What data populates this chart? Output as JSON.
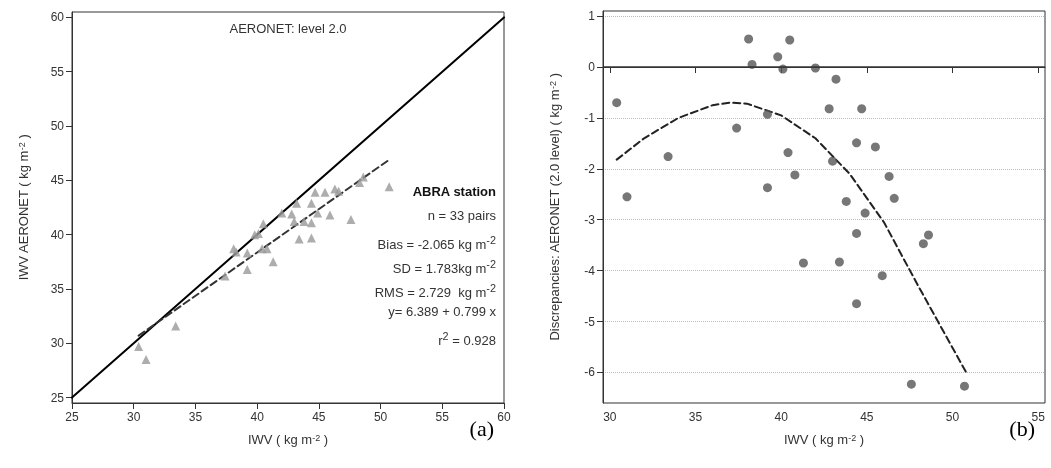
{
  "chart_data": [
    {
      "type": "scatter",
      "xlabel": "IWV ( kg m$^{-2}$ )",
      "ylabel": "IWV AERONET ( kg m$^{-2}$ )",
      "xlim": [
        25,
        60
      ],
      "ylim": [
        24.5,
        60.5
      ],
      "xticks": [
        25,
        30,
        35,
        40,
        45,
        50,
        55,
        60
      ],
      "yticks": [
        25,
        30,
        35,
        40,
        45,
        50,
        55,
        60
      ],
      "grid": false,
      "marker": "triangle",
      "annotations": [
        "AERONET: level 2.0",
        "ABRA station",
        "n = 33 pairs",
        "Bias = -2.065 kg m$^{-2}$",
        "SD = 1.783kg m$^{-2}$",
        "RMS = 2.729  kg m$^{-2}$",
        "y= 6.389 + 0.799 x",
        "r$^{2}$ = 0.928",
        "(a)"
      ],
      "series": [
        {
          "color": "#999999",
          "x": [
            30.4,
            31.0,
            33.4,
            37.4,
            38.1,
            38.3,
            39.2,
            39.2,
            39.8,
            40.1,
            40.5,
            40.4,
            40.8,
            41.3,
            42.0,
            42.8,
            43.2,
            43.0,
            43.4,
            43.8,
            44.4,
            44.4,
            44.4,
            44.7,
            44.9,
            45.5,
            45.9,
            46.3,
            46.6,
            47.6,
            48.3,
            48.6,
            50.7
          ],
          "values": [
            29.7,
            28.5,
            31.6,
            36.2,
            38.7,
            38.4,
            38.3,
            36.8,
            40.0,
            40.1,
            41.0,
            38.7,
            38.7,
            37.5,
            42.0,
            41.9,
            42.9,
            41.2,
            39.6,
            41.2,
            42.9,
            41.1,
            39.7,
            43.9,
            42.0,
            43.9,
            41.8,
            44.2,
            44.0,
            41.4,
            44.8,
            45.3,
            44.4
          ]
        },
        {
          "type": "line",
          "color": "#000000",
          "x": [
            25,
            60
          ],
          "values": [
            25,
            60
          ],
          "line_style": "solid",
          "marker": "none"
        },
        {
          "type": "line",
          "color": "#333333",
          "x": [
            30.4,
            50.7
          ],
          "values": [
            30.7,
            46.9
          ],
          "line_style": "dashed",
          "marker": "none"
        }
      ]
    },
    {
      "type": "scatter",
      "xlabel": "IWV ( kg m$^{-2}$ )",
      "ylabel": "Discrepancies: AERONET (2.0 level) ( kg m$^{-2}$ )",
      "xlim": [
        29.6,
        55.4
      ],
      "ylim": [
        -6.6,
        1.1
      ],
      "xticks": [
        30,
        35,
        40,
        45,
        50,
        55
      ],
      "yticks": [
        -6,
        -5,
        -4,
        -3,
        -2,
        -1,
        0,
        1
      ],
      "grid": "y",
      "marker": "circle",
      "annotations": [
        "(b)"
      ],
      "ref_lines": [
        {
          "axis": "y",
          "value": 0,
          "color": "#333333",
          "line_style": "solid"
        }
      ],
      "series": [
        {
          "color": "#555555",
          "x": [
            30.4,
            31.0,
            33.4,
            37.4,
            38.1,
            38.3,
            39.2,
            39.2,
            39.8,
            40.1,
            40.5,
            40.4,
            40.8,
            41.3,
            42.0,
            42.8,
            43.2,
            43.0,
            43.4,
            43.8,
            44.4,
            44.4,
            44.4,
            44.7,
            44.9,
            45.5,
            45.9,
            46.3,
            46.6,
            47.6,
            48.3,
            48.6,
            50.7
          ],
          "values": [
            -0.7,
            -2.55,
            -1.76,
            -1.2,
            0.55,
            0.05,
            -0.93,
            -2.37,
            0.2,
            -0.04,
            0.53,
            -1.68,
            -2.12,
            -3.85,
            -0.02,
            -0.82,
            -0.24,
            -1.85,
            -3.83,
            -2.64,
            -1.49,
            -3.27,
            -4.65,
            -0.82,
            -2.87,
            -1.57,
            -4.1,
            -2.15,
            -2.58,
            -6.23,
            -3.47,
            -3.3,
            -6.27
          ]
        },
        {
          "type": "line",
          "color": "#222222",
          "x": [
            30.4,
            32,
            34,
            36,
            37,
            38,
            40,
            42,
            44,
            46,
            48,
            50.8
          ],
          "values": [
            -1.82,
            -1.4,
            -1.0,
            -0.75,
            -0.7,
            -0.72,
            -0.95,
            -1.4,
            -2.1,
            -3.05,
            -4.3,
            -6.0
          ],
          "line_style": "dashed",
          "marker": "none"
        }
      ]
    }
  ]
}
